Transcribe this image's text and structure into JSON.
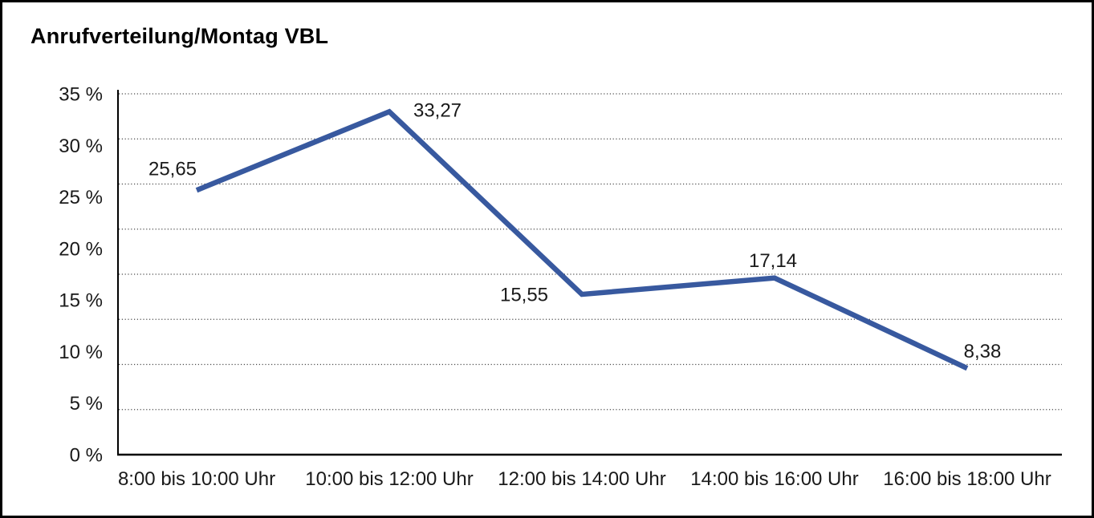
{
  "chart_data": {
    "type": "line",
    "title": "Anrufverteilung/Montag VBL",
    "categories": [
      "8:00 bis 10:00 Uhr",
      "10:00 bis 12:00 Uhr",
      "12:00 bis 14:00 Uhr",
      "14:00 bis 16:00 Uhr",
      "16:00 bis 18:00 Uhr"
    ],
    "values": [
      25.65,
      33.27,
      15.55,
      17.14,
      8.38
    ],
    "value_labels": [
      "25,65",
      "33,27",
      "15,55",
      "17,14",
      "8,38"
    ],
    "y_tick_labels": [
      "0 %",
      "5 %",
      "10 %",
      "15 %",
      "20 %",
      "25 %",
      "30 %",
      "35 %"
    ],
    "y_tick_step": 5,
    "ylim": [
      0,
      35
    ],
    "xlabel": "",
    "ylabel": "",
    "grid": "horizontal-dotted",
    "grid_divisions": 8,
    "legend": false,
    "line_color": "#38599F",
    "grid_color": "#4a4a4a",
    "axis_color": "#000000",
    "text_color": "#1a1a1a"
  }
}
